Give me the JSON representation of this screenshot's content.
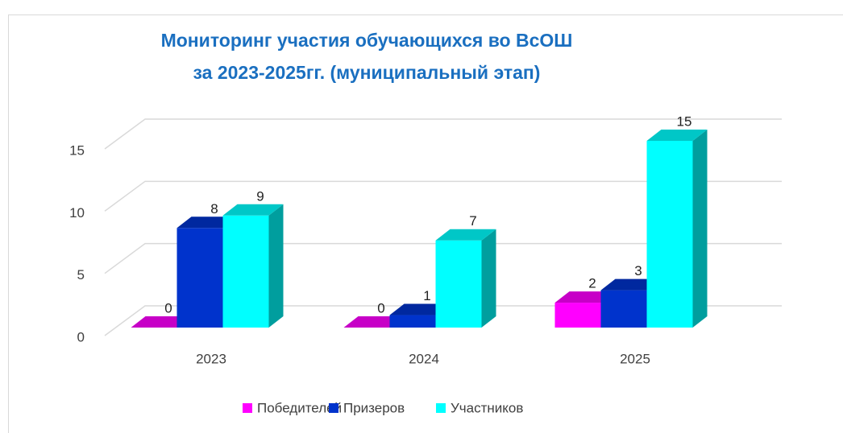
{
  "chart_data": {
    "type": "bar3d",
    "title": [
      "Мониторинг участия обучающихся во ВсОШ",
      "за 2023-2025гг. (муниципальный этап)"
    ],
    "categories": [
      "2023",
      "2024",
      "2025"
    ],
    "series": [
      {
        "name": "Победителей",
        "color": "#ff00ff",
        "values": [
          0,
          0,
          2
        ]
      },
      {
        "name": "Призеров",
        "color": "#0033cc",
        "values": [
          8,
          1,
          3
        ]
      },
      {
        "name": "Участников",
        "color": "#00ffff",
        "values": [
          9,
          7,
          15
        ]
      }
    ],
    "ylim": [
      0,
      15
    ],
    "yticks": [
      0,
      5,
      10,
      15
    ],
    "grid": true,
    "legend": "bottom"
  }
}
